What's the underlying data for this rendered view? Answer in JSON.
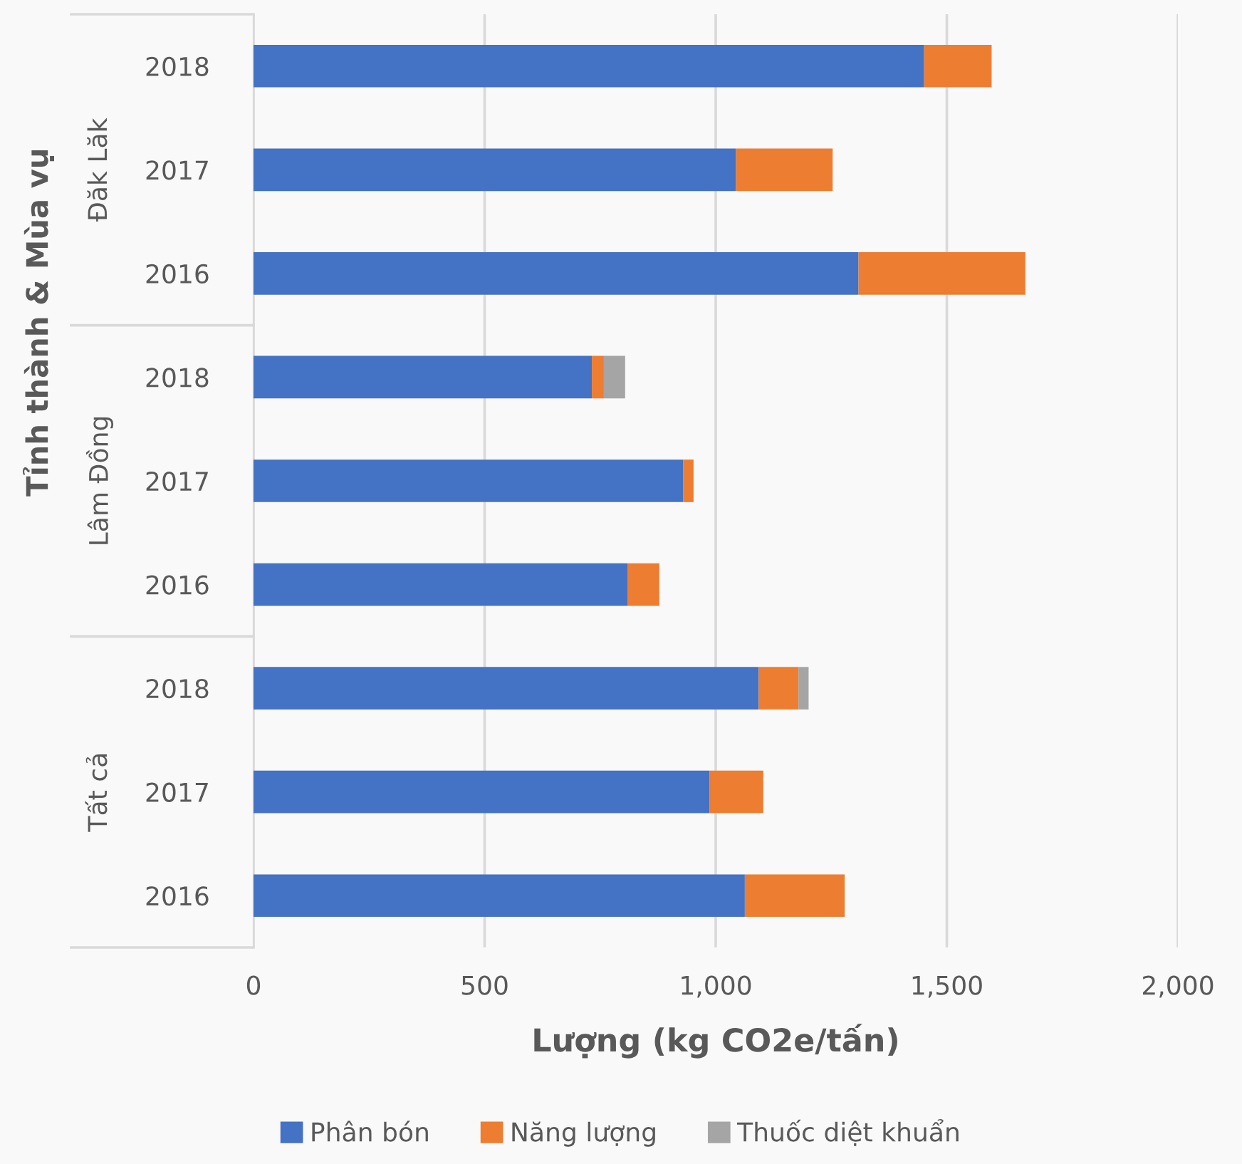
{
  "chart_data": {
    "type": "bar",
    "orientation": "horizontal",
    "stacked": true,
    "xlabel": "Lượng (kg CO2e/tấn)",
    "ylabel": "Tỉnh thành & Mùa vụ",
    "categories": [
      "2018",
      "2017",
      "2016",
      "2018",
      "2017",
      "2016",
      "2018",
      "2017",
      "2016"
    ],
    "annotations": [
      "Đăk Lăk",
      "Lâm Đồng",
      "Tất cả"
    ],
    "series": [
      {
        "name": "Phân bón",
        "color": "#4472c4",
        "values": [
          1451,
          1044,
          1309,
          732,
          930,
          810,
          1093,
          987,
          1063
        ]
      },
      {
        "name": "Năng lượng",
        "color": "#ed7d31",
        "values": [
          146,
          209,
          361,
          26,
          22,
          68,
          86,
          116,
          216
        ]
      },
      {
        "name": "Thuốc diệt khuẩn",
        "color": "#a5a5a5",
        "values": [
          null,
          null,
          null,
          46,
          null,
          null,
          22,
          null,
          null
        ]
      }
    ],
    "xlim": [
      0,
      2000
    ],
    "xticks": [
      0,
      {
        "value": 500,
        "label": "500"
      },
      {
        "value": 1000,
        "label": "1,000"
      },
      {
        "value": 1500,
        "label": "1,500"
      },
      {
        "value": 2000,
        "label": "2,000"
      }
    ],
    "grid": "x",
    "legend": "bottom"
  }
}
